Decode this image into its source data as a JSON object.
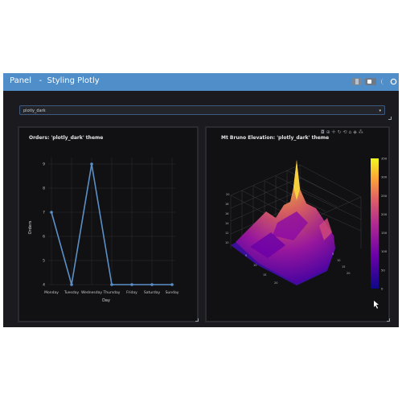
{
  "header": {
    "app_name": "Panel",
    "separator": "-",
    "page_title": "Styling Plotly",
    "bg_color": "#4f8ec9"
  },
  "theme_select": {
    "value": "plotly_dark",
    "caret": "▾"
  },
  "line_panel": {
    "title": "Orders: 'plotly_dark' theme",
    "chart_data": {
      "type": "line",
      "categories": [
        "Monday",
        "Tuesday",
        "Wednesday",
        "Thursday",
        "Friday",
        "Saturday",
        "Sunday"
      ],
      "series": [
        {
          "values": [
            7,
            4,
            9,
            4,
            4,
            4,
            4
          ]
        }
      ],
      "xlabel": "Day",
      "ylabel": "Orders",
      "ylim": [
        4,
        9
      ],
      "yticks": [
        4,
        5,
        6,
        7,
        8,
        9
      ],
      "grid": true,
      "color": "#5b8fc7"
    }
  },
  "surface_panel": {
    "title": "Mt Bruno Elevation: 'plotly_dark' theme",
    "toolbar_icons": [
      "camera-icon",
      "zoom-icon",
      "pan-icon",
      "orbit-icon",
      "turntable-icon",
      "home-icon",
      "hover-icon",
      "plotly-logo-icon"
    ],
    "chart_data": {
      "type": "surface",
      "colorscale": "plasma",
      "colorbar_ticks": [
        0,
        50,
        100,
        150,
        200,
        250,
        300,
        350
      ],
      "colorbar_range": [
        0,
        350
      ]
    }
  }
}
